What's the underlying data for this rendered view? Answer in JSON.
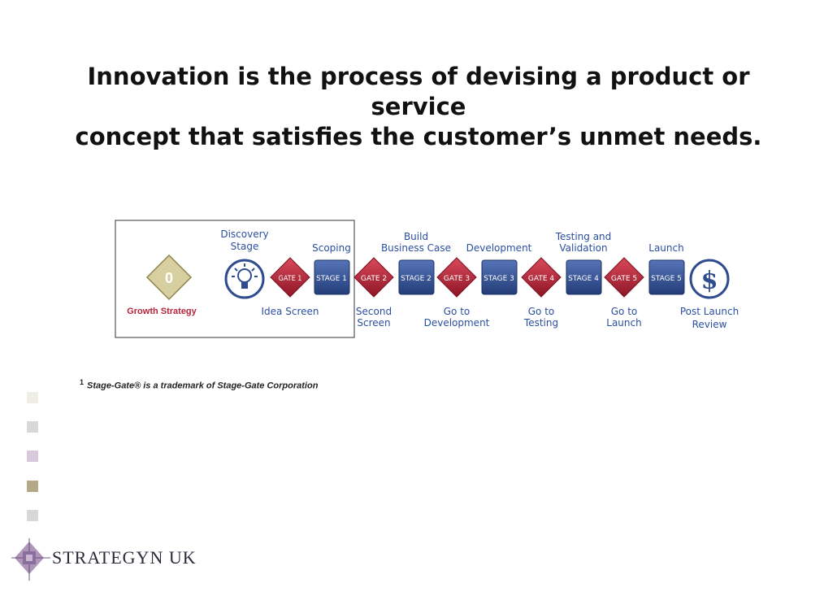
{
  "headline": {
    "line1": "Innovation is the process of devising a product or service",
    "line2": "concept that satisfies the customer’s unmet needs."
  },
  "process": {
    "gate0": {
      "label": "0",
      "caption": "Growth Strategy"
    },
    "discovery": {
      "title_line1": "Discovery",
      "title_line2": "Stage",
      "icon": "lightbulb-icon"
    },
    "stages": [
      {
        "label": "STAGE 1",
        "title_line1": "Scoping",
        "title_line2": ""
      },
      {
        "label": "STAGE 2",
        "title_line1": "Build",
        "title_line2": "Business Case"
      },
      {
        "label": "STAGE 3",
        "title_line1": "Development",
        "title_line2": ""
      },
      {
        "label": "STAGE 4",
        "title_line1": "Testing and",
        "title_line2": "Validation"
      },
      {
        "label": "STAGE 5",
        "title_line1": "Launch",
        "title_line2": ""
      }
    ],
    "gates": [
      {
        "label": "GATE 1",
        "caption_line1": "Idea Screen",
        "caption_line2": ""
      },
      {
        "label": "GATE 2",
        "caption_line1": "Second",
        "caption_line2": "Screen"
      },
      {
        "label": "GATE 3",
        "caption_line1": "Go to",
        "caption_line2": "Development"
      },
      {
        "label": "GATE 4",
        "caption_line1": "Go to",
        "caption_line2": "Testing"
      },
      {
        "label": "GATE 5",
        "caption_line1": "Go to",
        "caption_line2": "Launch"
      }
    ],
    "review": {
      "symbol": "$",
      "caption_line1": "Post Launch",
      "caption_line2": "Review",
      "icon": "dollar-icon"
    }
  },
  "footnote": {
    "marker": "1",
    "text": "Stage-Gate® is a trademark of Stage-Gate Corporation"
  },
  "brand": {
    "name": "STRATEGYN  UK",
    "icon": "strategyn-logo-icon"
  },
  "colors": {
    "gate_red": "#b5263a",
    "stage_blue": "#2e4c8e",
    "label_blue": "#2b4fa0",
    "gate0_gold": "#d7cfa0",
    "caption_red": "#b5263a",
    "bullet_colors": [
      "#efeee4",
      "#d8d8d8",
      "#d8c8dc",
      "#b4aa88",
      "#d8d8d8"
    ]
  }
}
